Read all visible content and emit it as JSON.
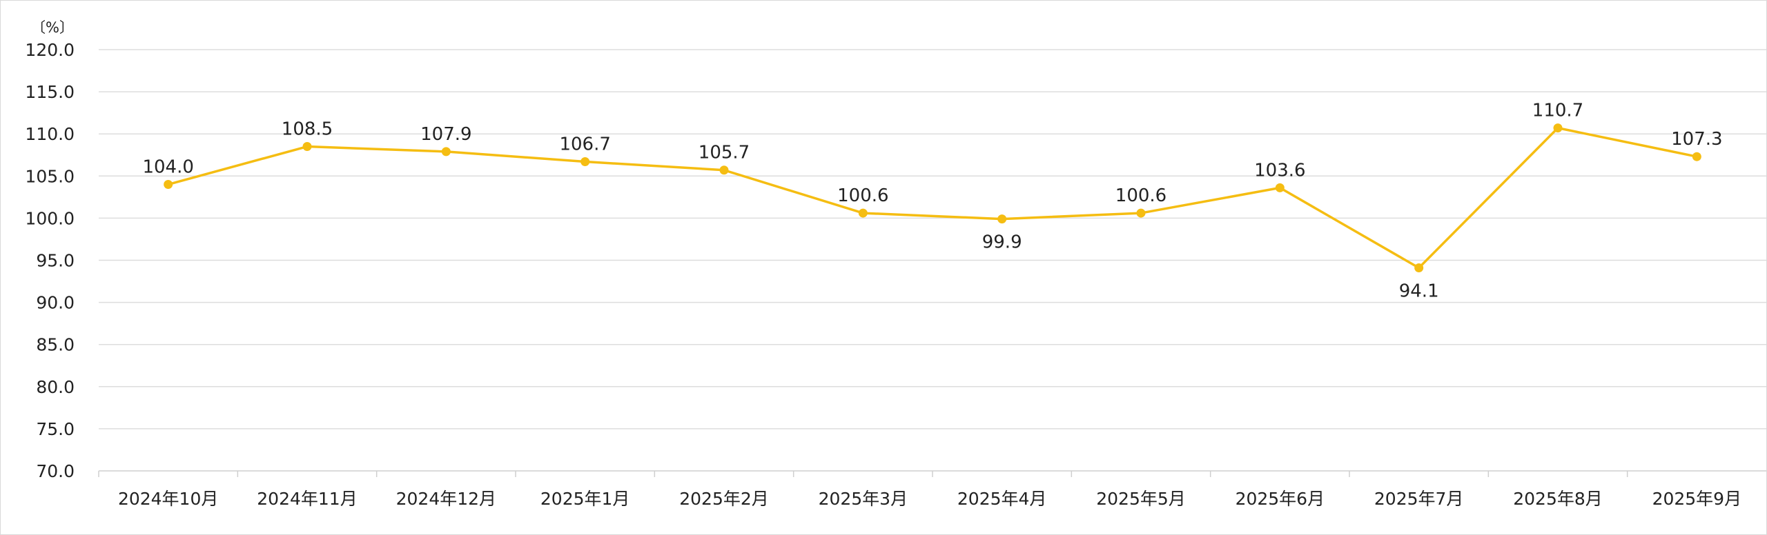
{
  "chart_data": {
    "type": "line",
    "unit_label": "〔%〕",
    "categories": [
      "2024年10月",
      "2024年11月",
      "2024年12月",
      "2025年1月",
      "2025年2月",
      "2025年3月",
      "2025年4月",
      "2025年5月",
      "2025年6月",
      "2025年7月",
      "2025年8月",
      "2025年9月"
    ],
    "series": [
      {
        "values": [
          104.0,
          108.5,
          107.9,
          106.7,
          105.7,
          100.6,
          99.9,
          100.6,
          103.6,
          94.1,
          110.7,
          107.3
        ],
        "color": "#f5bd12"
      }
    ],
    "data_labels": [
      "104.0",
      "108.5",
      "107.9",
      "106.7",
      "105.7",
      "100.6",
      "99.9",
      "100.6",
      "103.6",
      "94.1",
      "110.7",
      "107.3"
    ],
    "label_position": [
      "above",
      "above",
      "above",
      "above",
      "above",
      "above",
      "below",
      "above",
      "above",
      "below",
      "above",
      "above"
    ],
    "yticks": [
      "70.0",
      "75.0",
      "80.0",
      "85.0",
      "90.0",
      "95.0",
      "100.0",
      "105.0",
      "110.0",
      "115.0",
      "120.0"
    ],
    "ylim": [
      70,
      120
    ],
    "grid": true,
    "legend": false,
    "title": "",
    "xlabel": "",
    "ylabel": ""
  }
}
